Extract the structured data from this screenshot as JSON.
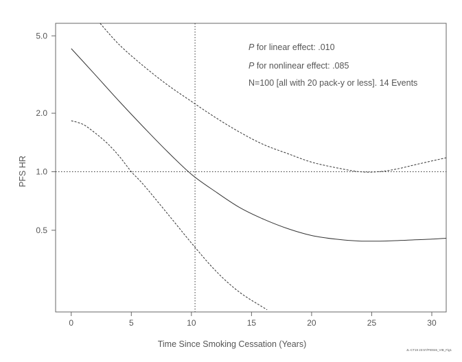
{
  "chart_data": {
    "type": "line",
    "xlabel": "Time Since Smoking Cessation (Years)",
    "ylabel": "PFS HR",
    "y_scale": "log",
    "xlim": [
      -1.3,
      31.2
    ],
    "ylim": [
      0.19,
      5.8
    ],
    "x_ticks": [
      0,
      5,
      10,
      15,
      20,
      25,
      30
    ],
    "y_ticks": [
      0.5,
      1.0,
      2.0,
      5.0
    ],
    "y_tick_labels": [
      "0.5",
      "1.0",
      "2.0",
      "5.0"
    ],
    "reference_lines": {
      "hr": 1.0,
      "years": 10.3
    },
    "annotations": [
      {
        "italic": "P",
        "text": " for linear effect: .010"
      },
      {
        "italic": "P",
        "text": " for nonlinear effect: .085"
      },
      {
        "italic": "",
        "text": "N=100 [all with 20 pack-y or less]. 14 Events"
      }
    ],
    "footnote": "JL-CT19 23:57/PI0046_VIB_Fig1",
    "series": [
      {
        "role": "estimate",
        "style": "solid",
        "x": [
          0,
          2,
          4,
          6,
          8,
          10,
          12,
          14,
          16,
          18,
          20,
          22,
          24,
          26,
          28,
          30,
          31.2
        ],
        "y": [
          4.3,
          3.15,
          2.3,
          1.7,
          1.27,
          0.97,
          0.79,
          0.655,
          0.57,
          0.51,
          0.47,
          0.45,
          0.44,
          0.44,
          0.445,
          0.45,
          0.455
        ]
      },
      {
        "role": "upper",
        "style": "dashed",
        "x": [
          2.4,
          4,
          6,
          8,
          10,
          12,
          14,
          16,
          18,
          20,
          22,
          24,
          25.5,
          27,
          29,
          31.2
        ],
        "y": [
          5.8,
          4.5,
          3.5,
          2.8,
          2.3,
          1.9,
          1.6,
          1.38,
          1.24,
          1.12,
          1.05,
          1.0,
          1.0,
          1.03,
          1.1,
          1.18
        ]
      },
      {
        "role": "lower",
        "style": "dashed",
        "x": [
          0,
          1,
          2,
          3,
          4,
          5,
          6,
          8,
          10,
          12,
          14,
          16.3
        ],
        "y": [
          1.83,
          1.75,
          1.58,
          1.4,
          1.2,
          1.0,
          0.86,
          0.61,
          0.43,
          0.31,
          0.24,
          0.195
        ]
      }
    ]
  }
}
